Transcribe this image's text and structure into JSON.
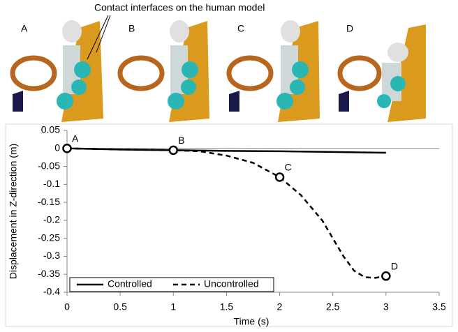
{
  "annotation": "Contact interfaces on the human model",
  "panels": [
    "A",
    "B",
    "C",
    "D"
  ],
  "chart_data": {
    "type": "line",
    "xlabel": "Time (s)",
    "ylabel": "Displacement  in Z-direction (m)",
    "xlim": [
      0,
      3.5
    ],
    "xticks": [
      0,
      0.5,
      1,
      1.5,
      2,
      2.5,
      3,
      3.5
    ],
    "ylim": [
      -0.4,
      0.05
    ],
    "yticks": [
      0.05,
      0,
      -0.05,
      -0.1,
      -0.15,
      -0.2,
      -0.25,
      -0.3,
      -0.35,
      -0.4
    ],
    "grid": false,
    "legend": "lower left",
    "series": [
      {
        "name": "Controlled",
        "color": "#000000",
        "dash": false,
        "x": [
          0,
          0.5,
          1,
          1.5,
          2,
          2.5,
          3
        ],
        "values": [
          0,
          -0.003,
          -0.005,
          -0.007,
          -0.008,
          -0.01,
          -0.012
        ]
      },
      {
        "name": "Uncontrolled",
        "color": "#000000",
        "dash": true,
        "x": [
          0,
          0.5,
          1,
          1.25,
          1.5,
          1.75,
          2,
          2.2,
          2.4,
          2.5,
          2.6,
          2.7,
          2.8,
          2.9,
          3
        ],
        "values": [
          0,
          -0.003,
          -0.005,
          -0.008,
          -0.02,
          -0.04,
          -0.08,
          -0.13,
          -0.2,
          -0.25,
          -0.3,
          -0.34,
          -0.358,
          -0.36,
          -0.355
        ]
      }
    ],
    "points": [
      {
        "label": "A",
        "x": 0,
        "y": 0
      },
      {
        "label": "B",
        "x": 1,
        "y": -0.005
      },
      {
        "label": "C",
        "x": 2,
        "y": -0.08
      },
      {
        "label": "D",
        "x": 3,
        "y": -0.355
      }
    ]
  }
}
